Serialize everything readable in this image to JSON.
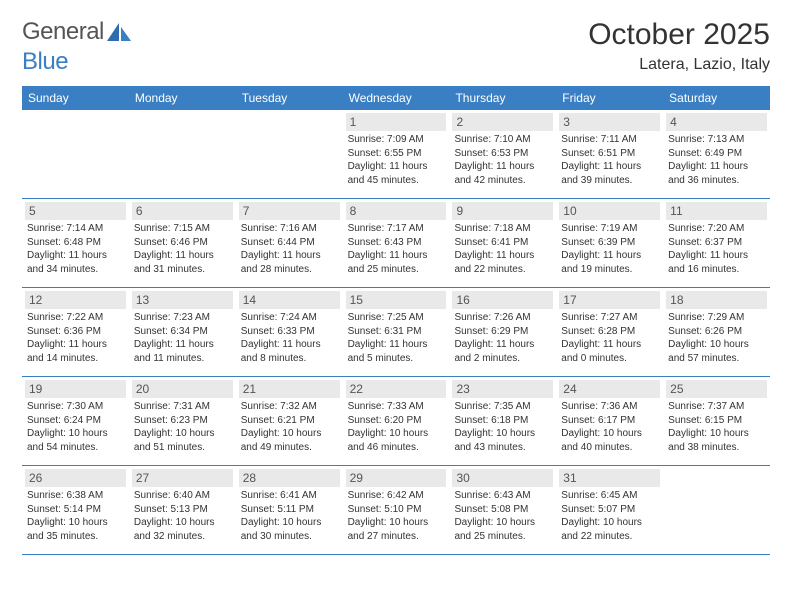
{
  "logo": {
    "word1": "General",
    "word2": "Blue"
  },
  "title": "October 2025",
  "location": "Latera, Lazio, Italy",
  "weekday_bg": "#3a7fc4",
  "weekdays": [
    "Sunday",
    "Monday",
    "Tuesday",
    "Wednesday",
    "Thursday",
    "Friday",
    "Saturday"
  ],
  "weeks": [
    [
      {
        "n": "",
        "sr": "",
        "ss": "",
        "dl": ""
      },
      {
        "n": "",
        "sr": "",
        "ss": "",
        "dl": ""
      },
      {
        "n": "",
        "sr": "",
        "ss": "",
        "dl": ""
      },
      {
        "n": "1",
        "sr": "Sunrise: 7:09 AM",
        "ss": "Sunset: 6:55 PM",
        "dl": "Daylight: 11 hours and 45 minutes."
      },
      {
        "n": "2",
        "sr": "Sunrise: 7:10 AM",
        "ss": "Sunset: 6:53 PM",
        "dl": "Daylight: 11 hours and 42 minutes."
      },
      {
        "n": "3",
        "sr": "Sunrise: 7:11 AM",
        "ss": "Sunset: 6:51 PM",
        "dl": "Daylight: 11 hours and 39 minutes."
      },
      {
        "n": "4",
        "sr": "Sunrise: 7:13 AM",
        "ss": "Sunset: 6:49 PM",
        "dl": "Daylight: 11 hours and 36 minutes."
      }
    ],
    [
      {
        "n": "5",
        "sr": "Sunrise: 7:14 AM",
        "ss": "Sunset: 6:48 PM",
        "dl": "Daylight: 11 hours and 34 minutes."
      },
      {
        "n": "6",
        "sr": "Sunrise: 7:15 AM",
        "ss": "Sunset: 6:46 PM",
        "dl": "Daylight: 11 hours and 31 minutes."
      },
      {
        "n": "7",
        "sr": "Sunrise: 7:16 AM",
        "ss": "Sunset: 6:44 PM",
        "dl": "Daylight: 11 hours and 28 minutes."
      },
      {
        "n": "8",
        "sr": "Sunrise: 7:17 AM",
        "ss": "Sunset: 6:43 PM",
        "dl": "Daylight: 11 hours and 25 minutes."
      },
      {
        "n": "9",
        "sr": "Sunrise: 7:18 AM",
        "ss": "Sunset: 6:41 PM",
        "dl": "Daylight: 11 hours and 22 minutes."
      },
      {
        "n": "10",
        "sr": "Sunrise: 7:19 AM",
        "ss": "Sunset: 6:39 PM",
        "dl": "Daylight: 11 hours and 19 minutes."
      },
      {
        "n": "11",
        "sr": "Sunrise: 7:20 AM",
        "ss": "Sunset: 6:37 PM",
        "dl": "Daylight: 11 hours and 16 minutes."
      }
    ],
    [
      {
        "n": "12",
        "sr": "Sunrise: 7:22 AM",
        "ss": "Sunset: 6:36 PM",
        "dl": "Daylight: 11 hours and 14 minutes."
      },
      {
        "n": "13",
        "sr": "Sunrise: 7:23 AM",
        "ss": "Sunset: 6:34 PM",
        "dl": "Daylight: 11 hours and 11 minutes."
      },
      {
        "n": "14",
        "sr": "Sunrise: 7:24 AM",
        "ss": "Sunset: 6:33 PM",
        "dl": "Daylight: 11 hours and 8 minutes."
      },
      {
        "n": "15",
        "sr": "Sunrise: 7:25 AM",
        "ss": "Sunset: 6:31 PM",
        "dl": "Daylight: 11 hours and 5 minutes."
      },
      {
        "n": "16",
        "sr": "Sunrise: 7:26 AM",
        "ss": "Sunset: 6:29 PM",
        "dl": "Daylight: 11 hours and 2 minutes."
      },
      {
        "n": "17",
        "sr": "Sunrise: 7:27 AM",
        "ss": "Sunset: 6:28 PM",
        "dl": "Daylight: 11 hours and 0 minutes."
      },
      {
        "n": "18",
        "sr": "Sunrise: 7:29 AM",
        "ss": "Sunset: 6:26 PM",
        "dl": "Daylight: 10 hours and 57 minutes."
      }
    ],
    [
      {
        "n": "19",
        "sr": "Sunrise: 7:30 AM",
        "ss": "Sunset: 6:24 PM",
        "dl": "Daylight: 10 hours and 54 minutes."
      },
      {
        "n": "20",
        "sr": "Sunrise: 7:31 AM",
        "ss": "Sunset: 6:23 PM",
        "dl": "Daylight: 10 hours and 51 minutes."
      },
      {
        "n": "21",
        "sr": "Sunrise: 7:32 AM",
        "ss": "Sunset: 6:21 PM",
        "dl": "Daylight: 10 hours and 49 minutes."
      },
      {
        "n": "22",
        "sr": "Sunrise: 7:33 AM",
        "ss": "Sunset: 6:20 PM",
        "dl": "Daylight: 10 hours and 46 minutes."
      },
      {
        "n": "23",
        "sr": "Sunrise: 7:35 AM",
        "ss": "Sunset: 6:18 PM",
        "dl": "Daylight: 10 hours and 43 minutes."
      },
      {
        "n": "24",
        "sr": "Sunrise: 7:36 AM",
        "ss": "Sunset: 6:17 PM",
        "dl": "Daylight: 10 hours and 40 minutes."
      },
      {
        "n": "25",
        "sr": "Sunrise: 7:37 AM",
        "ss": "Sunset: 6:15 PM",
        "dl": "Daylight: 10 hours and 38 minutes."
      }
    ],
    [
      {
        "n": "26",
        "sr": "Sunrise: 6:38 AM",
        "ss": "Sunset: 5:14 PM",
        "dl": "Daylight: 10 hours and 35 minutes."
      },
      {
        "n": "27",
        "sr": "Sunrise: 6:40 AM",
        "ss": "Sunset: 5:13 PM",
        "dl": "Daylight: 10 hours and 32 minutes."
      },
      {
        "n": "28",
        "sr": "Sunrise: 6:41 AM",
        "ss": "Sunset: 5:11 PM",
        "dl": "Daylight: 10 hours and 30 minutes."
      },
      {
        "n": "29",
        "sr": "Sunrise: 6:42 AM",
        "ss": "Sunset: 5:10 PM",
        "dl": "Daylight: 10 hours and 27 minutes."
      },
      {
        "n": "30",
        "sr": "Sunrise: 6:43 AM",
        "ss": "Sunset: 5:08 PM",
        "dl": "Daylight: 10 hours and 25 minutes."
      },
      {
        "n": "31",
        "sr": "Sunrise: 6:45 AM",
        "ss": "Sunset: 5:07 PM",
        "dl": "Daylight: 10 hours and 22 minutes."
      },
      {
        "n": "",
        "sr": "",
        "ss": "",
        "dl": ""
      }
    ]
  ]
}
